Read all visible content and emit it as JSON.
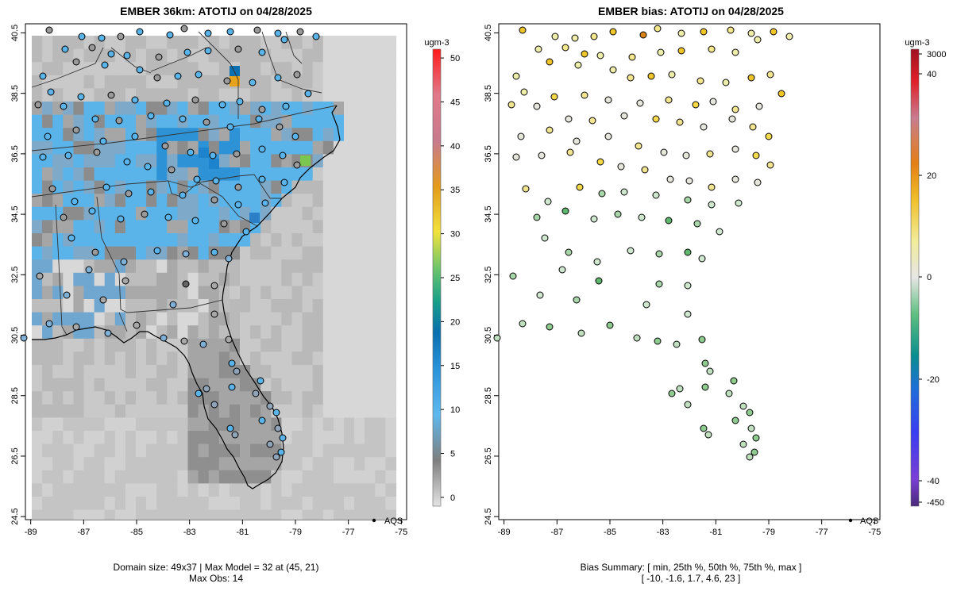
{
  "chart_data": [
    {
      "type": "heatmap",
      "title": "EMBER 36km: ATOTIJ on 04/28/2025",
      "x_ticks": [
        "-89",
        "-87",
        "-85",
        "-83",
        "-81",
        "-79",
        "-77",
        "-75"
      ],
      "y_ticks": [
        "24.5",
        "26.5",
        "28.5",
        "30.5",
        "32.5",
        "34.5",
        "36.5",
        "38.5",
        "40.5"
      ],
      "xlim": [
        -89.2,
        -74.8
      ],
      "ylim": [
        24.4,
        40.8
      ],
      "colorbar": {
        "units": "ugm-3",
        "ticks": [
          "0",
          "5",
          "10",
          "15",
          "20",
          "25",
          "30",
          "35",
          "40",
          "45",
          "50"
        ],
        "range": [
          -1,
          51
        ]
      },
      "legend": {
        "label": "AQS",
        "position": "bottom-right"
      },
      "footer": [
        "Domain size: 49x37 | Max Model = 32 at (45, 21)",
        "Max Obs: 14"
      ]
    },
    {
      "type": "scatter",
      "title": "EMBER bias: ATOTIJ on 04/28/2025",
      "x_ticks": [
        "-89",
        "-87",
        "-85",
        "-83",
        "-81",
        "-79",
        "-77",
        "-75"
      ],
      "y_ticks": [
        "24.5",
        "26.5",
        "28.5",
        "30.5",
        "32.5",
        "34.5",
        "36.5",
        "38.5",
        "40.5"
      ],
      "xlim": [
        -89.2,
        -74.8
      ],
      "ylim": [
        24.4,
        40.8
      ],
      "colorbar": {
        "units": "ugm-3",
        "ticks": [
          "3000",
          "40",
          "20",
          "0",
          "-20",
          "-40",
          "-450"
        ]
      },
      "legend": {
        "label": "AQS",
        "position": "bottom-right"
      },
      "footer": [
        "Bias Summary: [ min, 25th %, 50th %, 75th %, max ]",
        "[ -10,   -1.6,   1.7,   4.6,   23 ]"
      ],
      "bias_summary": {
        "min": -10,
        "p25": -1.6,
        "p50": 1.7,
        "p75": 4.6,
        "max": 23
      }
    }
  ],
  "colors": {
    "frame": "#000000",
    "land_outline": "#000000",
    "state_lines": "#333333"
  }
}
